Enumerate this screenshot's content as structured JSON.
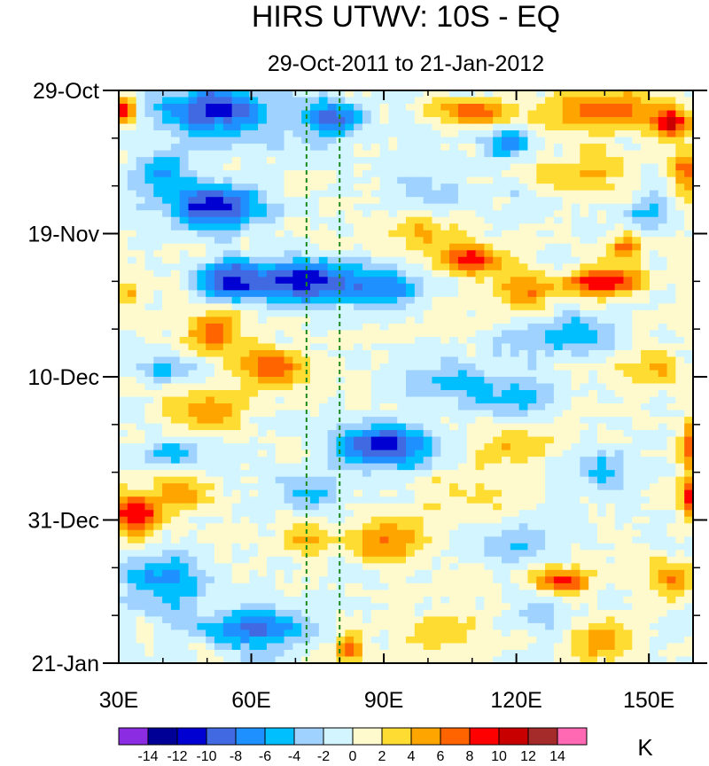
{
  "chart_data": {
    "type": "heatmap",
    "title": "HIRS UTWV: 10S - EQ",
    "subtitle": "29-Oct-2011 to 21-Jan-2012",
    "x_axis": {
      "range": [
        30,
        160
      ],
      "ticks": [
        30,
        60,
        90,
        120,
        150
      ],
      "tick_labels": [
        "30E",
        "60E",
        "90E",
        "120E",
        "150E"
      ]
    },
    "y_axis": {
      "range_days": [
        0,
        84
      ],
      "ticks_days": [
        0,
        21,
        42,
        63,
        84
      ],
      "tick_labels": [
        "29-Oct",
        "19-Nov",
        "10-Dec",
        "31-Dec",
        "21-Jan"
      ],
      "minor_step_days": 7
    },
    "reference_lines_lon": [
      72.5,
      80
    ],
    "colorbar": {
      "unit": "K",
      "levels": [
        -14,
        -12,
        -10,
        -8,
        -6,
        -4,
        -2,
        0,
        2,
        4,
        6,
        8,
        10,
        12,
        14
      ],
      "label_texts": [
        "-14",
        "-12",
        "-10",
        "-8",
        "-6",
        "-4",
        "-2",
        "0",
        "2",
        "4",
        "6",
        "8",
        "10",
        "12",
        "14"
      ],
      "colors": [
        "#8b2be2",
        "#000096",
        "#0000d2",
        "#4169e1",
        "#1e90ff",
        "#00bfff",
        "#a0d2ff",
        "#d2f5ff",
        "#fffacd",
        "#ffdc32",
        "#ffa500",
        "#ff6400",
        "#ff0000",
        "#c80000",
        "#a52a2a",
        "#ff69b4"
      ]
    },
    "anomaly_features": [
      {
        "lon": 31,
        "day": 3,
        "value": 10,
        "spread_lon": 3,
        "spread_day": 2
      },
      {
        "lon": 52,
        "day": 3,
        "value": -10,
        "spread_lon": 14,
        "spread_day": 4
      },
      {
        "lon": 78,
        "day": 4,
        "value": -9,
        "spread_lon": 7,
        "spread_day": 3
      },
      {
        "lon": 110,
        "day": 3,
        "value": 7,
        "spread_lon": 9,
        "spread_day": 2
      },
      {
        "lon": 140,
        "day": 3,
        "value": 7,
        "spread_lon": 14,
        "spread_day": 3
      },
      {
        "lon": 155,
        "day": 5,
        "value": 9,
        "spread_lon": 4,
        "spread_day": 2
      },
      {
        "lon": 118,
        "day": 8,
        "value": -8,
        "spread_lon": 5,
        "spread_day": 2
      },
      {
        "lon": 40,
        "day": 12,
        "value": -6,
        "spread_lon": 7,
        "spread_day": 3
      },
      {
        "lon": 135,
        "day": 12,
        "value": 4,
        "spread_lon": 10,
        "spread_day": 3
      },
      {
        "lon": 158,
        "day": 12,
        "value": 6,
        "spread_lon": 3,
        "spread_day": 4
      },
      {
        "lon": 52,
        "day": 17,
        "value": -12,
        "spread_lon": 10,
        "spread_day": 3
      },
      {
        "lon": 72,
        "day": 28,
        "value": -12,
        "spread_lon": 12,
        "spread_day": 3
      },
      {
        "lon": 55,
        "day": 28,
        "value": -10,
        "spread_lon": 7,
        "spread_day": 3
      },
      {
        "lon": 90,
        "day": 29,
        "value": -7,
        "spread_lon": 8,
        "spread_day": 3
      },
      {
        "lon": 110,
        "day": 25,
        "value": 9,
        "spread_lon": 8,
        "spread_day": 2
      },
      {
        "lon": 100,
        "day": 21,
        "value": 5,
        "spread_lon": 8,
        "spread_day": 3
      },
      {
        "lon": 140,
        "day": 28,
        "value": 10,
        "spread_lon": 9,
        "spread_day": 2
      },
      {
        "lon": 145,
        "day": 23,
        "value": 7,
        "spread_lon": 4,
        "spread_day": 2
      },
      {
        "lon": 122,
        "day": 30,
        "value": 6,
        "spread_lon": 7,
        "spread_day": 3
      },
      {
        "lon": 52,
        "day": 35,
        "value": 7,
        "spread_lon": 7,
        "spread_day": 3
      },
      {
        "lon": 32,
        "day": 30,
        "value": 4,
        "spread_lon": 3,
        "spread_day": 2
      },
      {
        "lon": 130,
        "day": 36,
        "value": -6,
        "spread_lon": 12,
        "spread_day": 3
      },
      {
        "lon": 40,
        "day": 41,
        "value": -5,
        "spread_lon": 6,
        "spread_day": 2
      },
      {
        "lon": 65,
        "day": 41,
        "value": 7,
        "spread_lon": 9,
        "spread_day": 3
      },
      {
        "lon": 105,
        "day": 43,
        "value": -5,
        "spread_lon": 10,
        "spread_day": 3
      },
      {
        "lon": 150,
        "day": 41,
        "value": 4,
        "spread_lon": 8,
        "spread_day": 3
      },
      {
        "lon": 50,
        "day": 47,
        "value": 6,
        "spread_lon": 9,
        "spread_day": 3
      },
      {
        "lon": 90,
        "day": 52,
        "value": -11,
        "spread_lon": 11,
        "spread_day": 3
      },
      {
        "lon": 42,
        "day": 53,
        "value": -6,
        "spread_lon": 7,
        "spread_day": 2
      },
      {
        "lon": 118,
        "day": 52,
        "value": 4,
        "spread_lon": 8,
        "spread_day": 3
      },
      {
        "lon": 160,
        "day": 52,
        "value": 9,
        "spread_lon": 3,
        "spread_day": 3
      },
      {
        "lon": 140,
        "day": 56,
        "value": -5,
        "spread_lon": 8,
        "spread_day": 3
      },
      {
        "lon": 34,
        "day": 62,
        "value": 10,
        "spread_lon": 6,
        "spread_day": 3
      },
      {
        "lon": 45,
        "day": 59,
        "value": 5,
        "spread_lon": 6,
        "spread_day": 3
      },
      {
        "lon": 72,
        "day": 59,
        "value": -5,
        "spread_lon": 7,
        "spread_day": 3
      },
      {
        "lon": 160,
        "day": 60,
        "value": 9,
        "spread_lon": 3,
        "spread_day": 3
      },
      {
        "lon": 90,
        "day": 66,
        "value": 6,
        "spread_lon": 8,
        "spread_day": 3
      },
      {
        "lon": 72,
        "day": 66,
        "value": 5,
        "spread_lon": 6,
        "spread_day": 2
      },
      {
        "lon": 120,
        "day": 66,
        "value": -4,
        "spread_lon": 10,
        "spread_day": 3
      },
      {
        "lon": 40,
        "day": 72,
        "value": -7,
        "spread_lon": 9,
        "spread_day": 4
      },
      {
        "lon": 130,
        "day": 72,
        "value": 9,
        "spread_lon": 6,
        "spread_day": 2
      },
      {
        "lon": 155,
        "day": 72,
        "value": 6,
        "spread_lon": 5,
        "spread_day": 3
      },
      {
        "lon": 60,
        "day": 79,
        "value": -8,
        "spread_lon": 12,
        "spread_day": 3
      },
      {
        "lon": 82,
        "day": 82,
        "value": 8,
        "spread_lon": 3,
        "spread_day": 2
      },
      {
        "lon": 105,
        "day": 79,
        "value": 4,
        "spread_lon": 8,
        "spread_day": 3
      },
      {
        "lon": 140,
        "day": 81,
        "value": 5,
        "spread_lon": 7,
        "spread_day": 3
      },
      {
        "lon": 100,
        "day": 14,
        "value": -3,
        "spread_lon": 10,
        "spread_day": 4
      },
      {
        "lon": 150,
        "day": 18,
        "value": -4,
        "spread_lon": 5,
        "spread_day": 3
      },
      {
        "lon": 120,
        "day": 45,
        "value": -5,
        "spread_lon": 7,
        "spread_day": 3
      },
      {
        "lon": 110,
        "day": 60,
        "value": 3,
        "spread_lon": 9,
        "spread_day": 3
      },
      {
        "lon": 125,
        "day": 76,
        "value": -3,
        "spread_lon": 8,
        "spread_day": 3
      }
    ]
  }
}
